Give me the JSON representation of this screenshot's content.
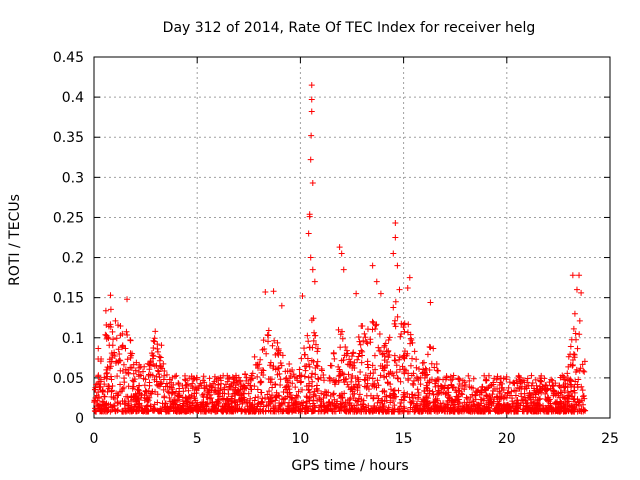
{
  "chart_data": {
    "type": "scatter",
    "title": "Day 312 of 2014, Rate Of TEC Index for receiver helg",
    "xlabel": "GPS time / hours",
    "ylabel": "ROTI / TECUs",
    "xlim": [
      0,
      25
    ],
    "ylim": [
      0,
      0.45
    ],
    "xticks": [
      0,
      5,
      10,
      15,
      20,
      25
    ],
    "yticks": [
      0,
      0.05,
      0.1,
      0.15,
      0.2,
      0.25,
      0.3,
      0.35,
      0.4,
      0.45
    ],
    "xtick_labels": [
      "0",
      "5",
      "10",
      "15",
      "20",
      "25"
    ],
    "ytick_labels": [
      "0",
      "0.05",
      "0.1",
      "0.15",
      "0.2",
      "0.25",
      "0.3",
      "0.35",
      "0.4",
      "0.45"
    ],
    "grid": true,
    "marker": "+",
    "marker_color": "#ff0000",
    "data_x_range": [
      0,
      23.8
    ],
    "series": [
      {
        "name": "ROTI",
        "notable_points": [
          {
            "x": 10.55,
            "y": 0.415
          },
          {
            "x": 10.55,
            "y": 0.397
          },
          {
            "x": 10.55,
            "y": 0.382
          },
          {
            "x": 10.52,
            "y": 0.352
          },
          {
            "x": 10.5,
            "y": 0.322
          },
          {
            "x": 10.6,
            "y": 0.293
          },
          {
            "x": 10.45,
            "y": 0.254
          },
          {
            "x": 10.45,
            "y": 0.251
          },
          {
            "x": 10.4,
            "y": 0.23
          },
          {
            "x": 10.5,
            "y": 0.2
          },
          {
            "x": 10.6,
            "y": 0.185
          },
          {
            "x": 10.7,
            "y": 0.17
          },
          {
            "x": 14.6,
            "y": 0.243
          },
          {
            "x": 14.6,
            "y": 0.225
          },
          {
            "x": 14.5,
            "y": 0.205
          },
          {
            "x": 14.7,
            "y": 0.19
          },
          {
            "x": 14.8,
            "y": 0.16
          },
          {
            "x": 11.9,
            "y": 0.213
          },
          {
            "x": 12.0,
            "y": 0.205
          },
          {
            "x": 12.1,
            "y": 0.185
          },
          {
            "x": 13.5,
            "y": 0.19
          },
          {
            "x": 13.7,
            "y": 0.17
          },
          {
            "x": 13.9,
            "y": 0.155
          },
          {
            "x": 15.3,
            "y": 0.175
          },
          {
            "x": 15.2,
            "y": 0.162
          },
          {
            "x": 23.2,
            "y": 0.178
          },
          {
            "x": 23.5,
            "y": 0.178
          },
          {
            "x": 23.4,
            "y": 0.16
          },
          {
            "x": 23.6,
            "y": 0.156
          },
          {
            "x": 23.3,
            "y": 0.13
          },
          {
            "x": 0.8,
            "y": 0.153
          },
          {
            "x": 1.6,
            "y": 0.148
          },
          {
            "x": 8.3,
            "y": 0.157
          },
          {
            "x": 8.7,
            "y": 0.158
          },
          {
            "x": 9.1,
            "y": 0.14
          },
          {
            "x": 16.3,
            "y": 0.144
          },
          {
            "x": 12.7,
            "y": 0.155
          },
          {
            "x": 10.1,
            "y": 0.152
          }
        ]
      }
    ]
  }
}
